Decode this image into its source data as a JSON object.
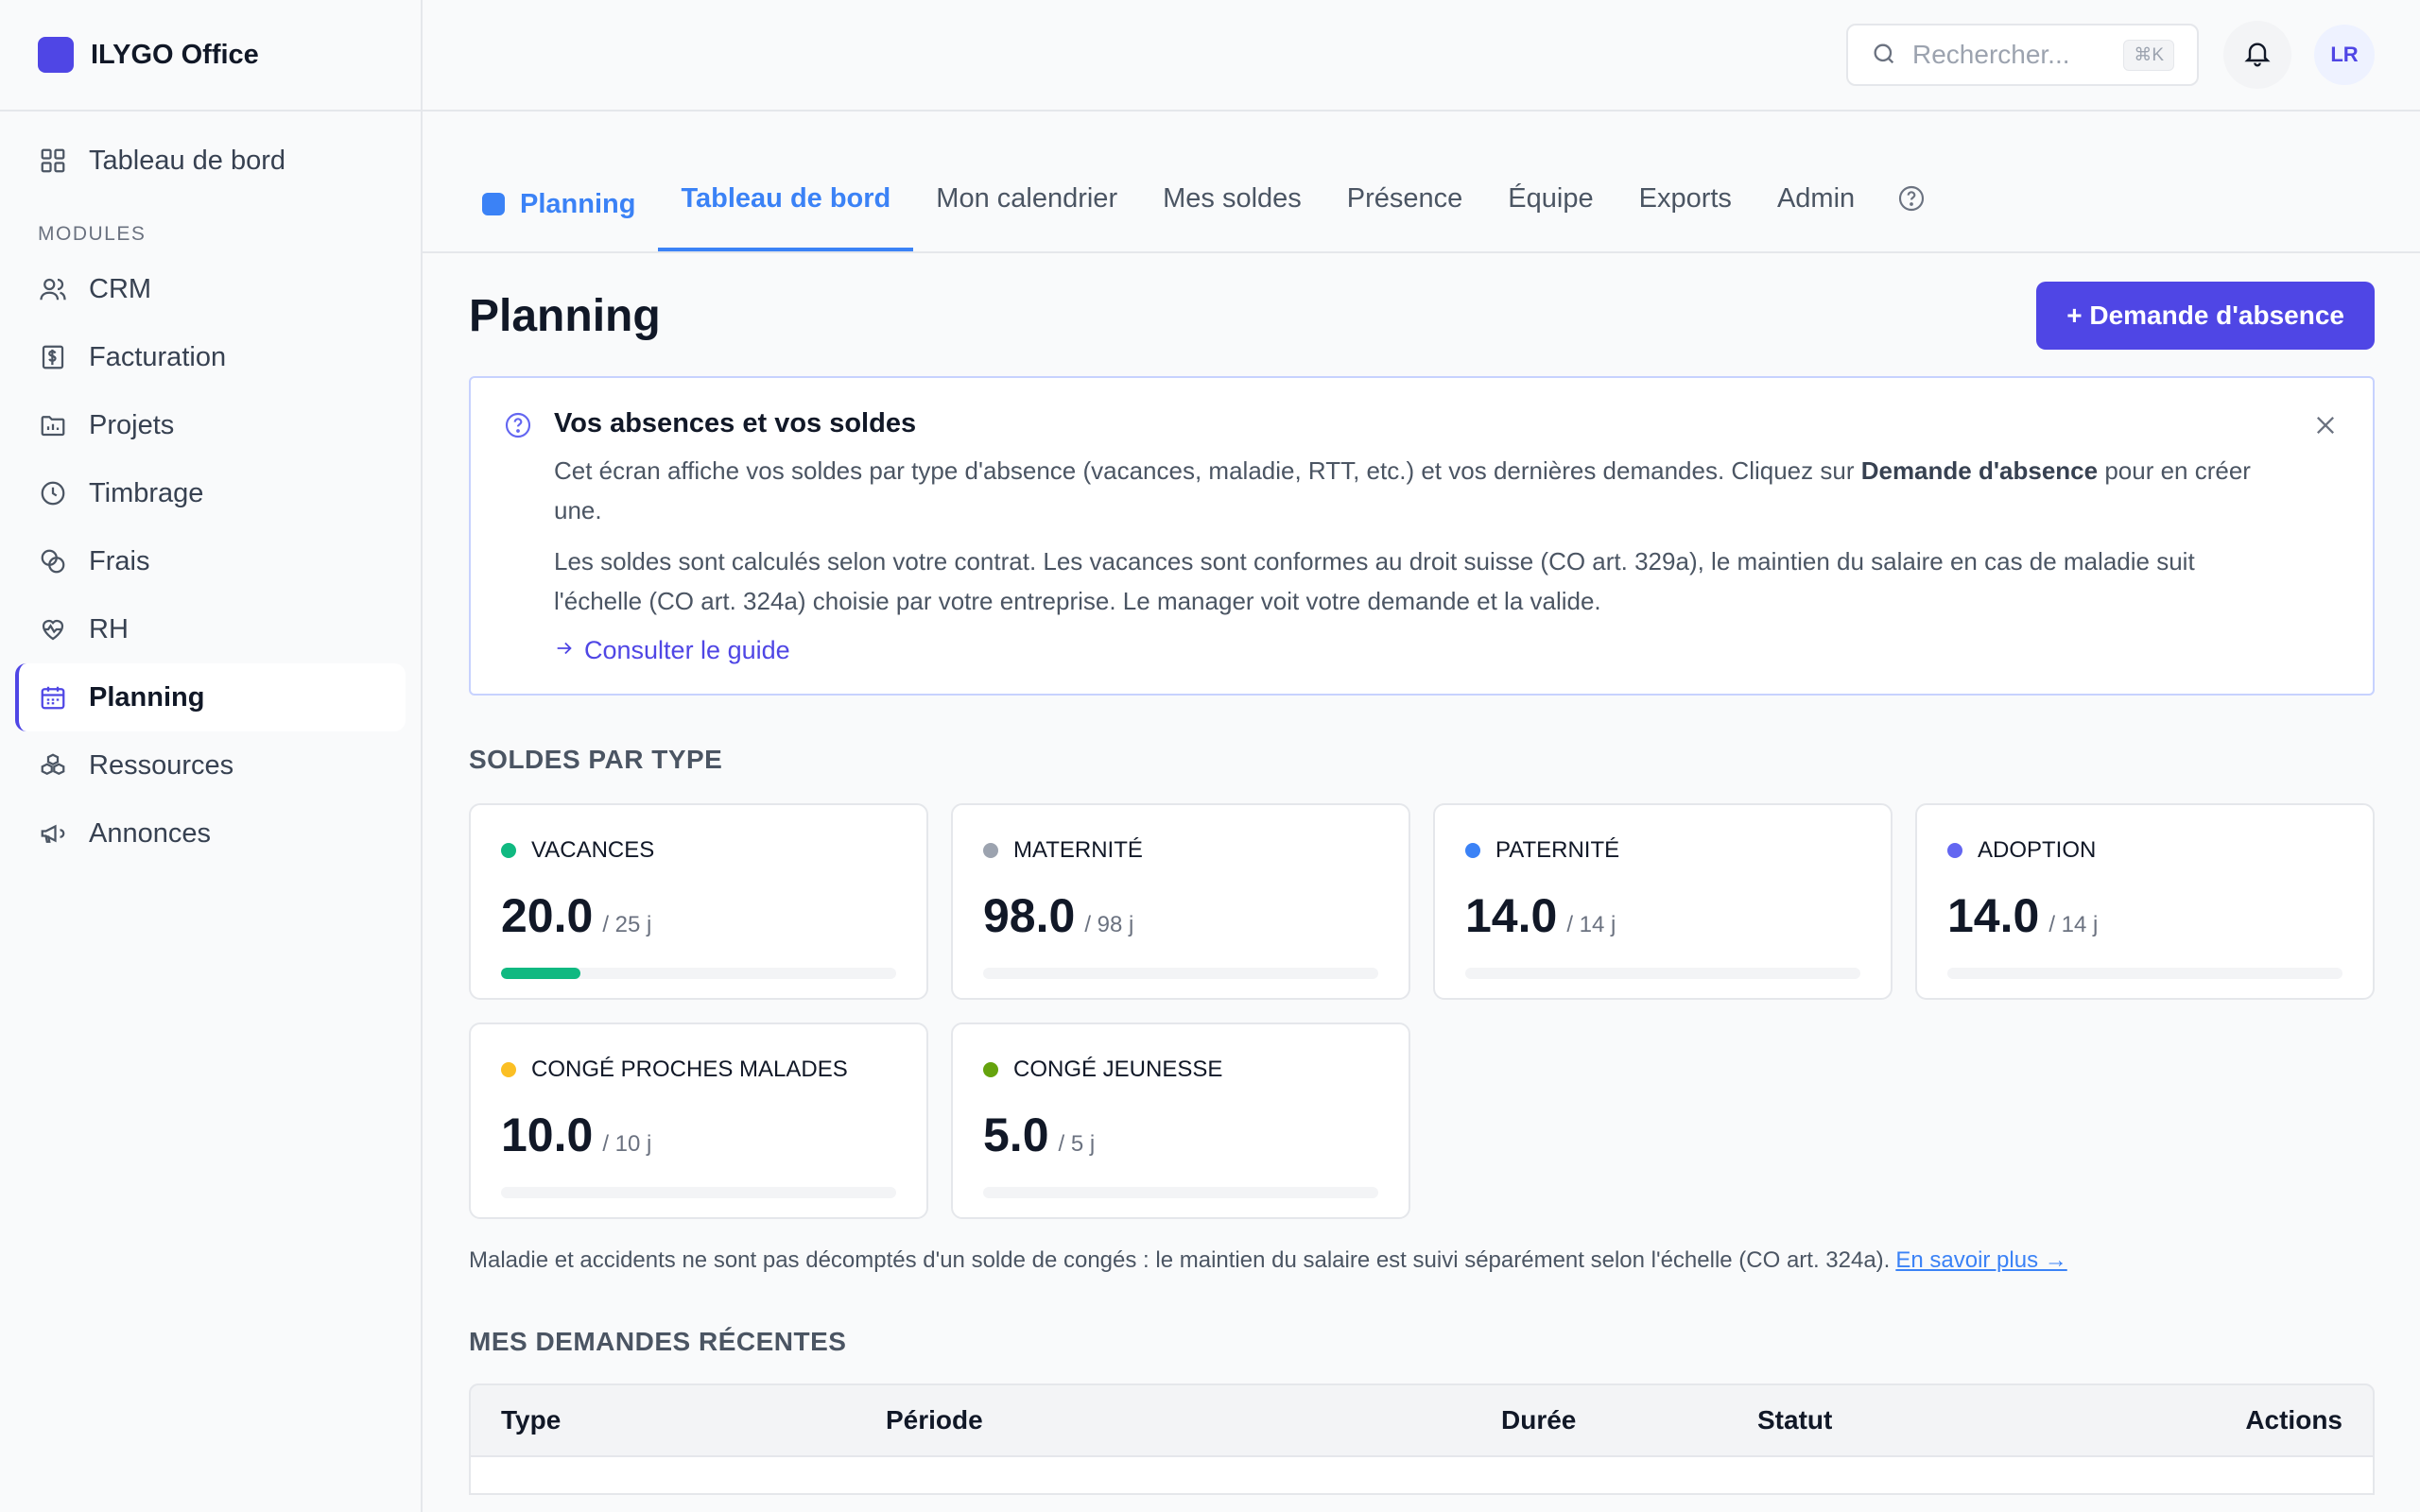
{
  "app": {
    "name": "ILYGO Office",
    "brand_color": "#4f46e5"
  },
  "sidebar": {
    "top_item": {
      "label": "Tableau de bord",
      "icon": "grid-icon"
    },
    "section_label": "MODULES",
    "items": [
      {
        "label": "CRM",
        "icon": "users-icon"
      },
      {
        "label": "Facturation",
        "icon": "invoice-icon"
      },
      {
        "label": "Projets",
        "icon": "folder-icon"
      },
      {
        "label": "Timbrage",
        "icon": "clock-icon"
      },
      {
        "label": "Frais",
        "icon": "coins-icon"
      },
      {
        "label": "RH",
        "icon": "heart-pulse-icon"
      },
      {
        "label": "Planning",
        "icon": "calendar-icon",
        "active": true
      },
      {
        "label": "Ressources",
        "icon": "boxes-icon"
      },
      {
        "label": "Annonces",
        "icon": "megaphone-icon"
      }
    ]
  },
  "topbar": {
    "search_placeholder": "Rechercher...",
    "search_shortcut": "⌘K",
    "avatar_initials": "LR"
  },
  "tabs": {
    "module_label": "Planning",
    "items": [
      "Tableau de bord",
      "Mon calendrier",
      "Mes soldes",
      "Présence",
      "Équipe",
      "Exports",
      "Admin"
    ],
    "active": "Tableau de bord"
  },
  "page": {
    "title": "Planning",
    "primary_action": "+ Demande d'absence"
  },
  "info": {
    "title": "Vos absences et vos soldes",
    "p1_before": "Cet écran affiche vos soldes par type d'absence (vacances, maladie, RTT, etc.) et vos dernières demandes. Cliquez sur ",
    "p1_bold": "Demande d'absence",
    "p1_after": " pour en créer une.",
    "p2": "Les soldes sont calculés selon votre contrat. Les vacances sont conformes au droit suisse (CO art. 329a), le maintien du salaire en cas de maladie suit l'échelle (CO art. 324a) choisie par votre entreprise. Le manager voit votre demande et la valide.",
    "link": "Consulter le guide"
  },
  "balances": {
    "section_title": "SOLDES PAR TYPE",
    "cards": [
      {
        "label": "VACANCES",
        "value": "20.0",
        "total": "/ 25 j",
        "color": "#10b981",
        "fill_pct": 20
      },
      {
        "label": "MATERNITÉ",
        "value": "98.0",
        "total": "/ 98 j",
        "color": "#9ca3af",
        "fill_pct": 0
      },
      {
        "label": "PATERNITÉ",
        "value": "14.0",
        "total": "/ 14 j",
        "color": "#3b82f6",
        "fill_pct": 0
      },
      {
        "label": "ADOPTION",
        "value": "14.0",
        "total": "/ 14 j",
        "color": "#6366f1",
        "fill_pct": 0
      },
      {
        "label": "CONGÉ PROCHES MALADES",
        "value": "10.0",
        "total": "/ 10 j",
        "color": "#fbbf24",
        "fill_pct": 0
      },
      {
        "label": "CONGÉ JEUNESSE",
        "value": "5.0",
        "total": "/ 5 j",
        "color": "#65a30d",
        "fill_pct": 0
      }
    ],
    "note": "Maladie et accidents ne sont pas décomptés d'un solde de congés : le maintien du salaire est suivi séparément selon l'échelle (CO art. 324a).",
    "note_link": "En savoir plus →"
  },
  "requests": {
    "section_title": "MES DEMANDES RÉCENTES",
    "columns": [
      "Type",
      "Période",
      "Durée",
      "Statut",
      "Actions"
    ]
  }
}
